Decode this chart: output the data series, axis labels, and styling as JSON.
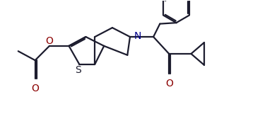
{
  "background_color": "#ffffff",
  "line_color": "#1c1c2e",
  "atom_colors": {
    "S": "#1c1c2e",
    "N": "#00008b",
    "O": "#8b0000"
  },
  "line_width": 1.6,
  "font_size": 10,
  "figsize": [
    3.68,
    1.85
  ],
  "dpi": 100,
  "xlim": [
    0,
    10
  ],
  "ylim": [
    0,
    5
  ]
}
